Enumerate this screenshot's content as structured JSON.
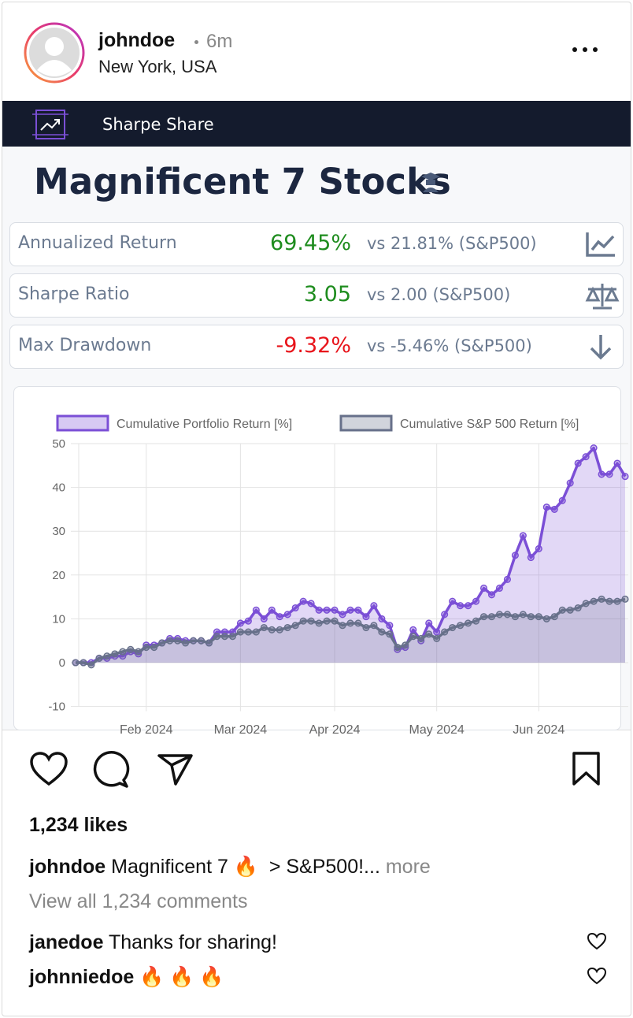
{
  "post": {
    "username": "johndoe",
    "time": "6m",
    "location": "New York, USA"
  },
  "app": {
    "name": "Sharpe Share",
    "title": "Magnificent 7 Stocks"
  },
  "metrics": [
    {
      "label": "Annualized Return",
      "value": "69.45%",
      "benchmark": "vs 21.81% (S&P500)",
      "color": "#1e8c1e"
    },
    {
      "label": "Sharpe Ratio",
      "value": "3.05",
      "benchmark": "vs 2.00 (S&P500)",
      "color": "#1e8c1e"
    },
    {
      "label": "Max Drawdown",
      "value": "-9.32%",
      "benchmark": "vs -5.46% (S&P500)",
      "color": "#e8141b"
    }
  ],
  "chart_data": {
    "type": "line",
    "categories": [
      null,
      null,
      null,
      null,
      null,
      null,
      null,
      null,
      null,
      "Feb 2024",
      null,
      null,
      null,
      null,
      null,
      null,
      null,
      null,
      null,
      null,
      null,
      "Mar 2024",
      null,
      null,
      null,
      null,
      null,
      null,
      null,
      null,
      null,
      null,
      null,
      "Apr 2024",
      null,
      null,
      null,
      null,
      null,
      null,
      null,
      null,
      null,
      null,
      null,
      null,
      "May 2024",
      null,
      null,
      null,
      null,
      null,
      null,
      null,
      null,
      null,
      null,
      null,
      null,
      "Jun 2024",
      null,
      null,
      null,
      null,
      null,
      null,
      null,
      null,
      null,
      null,
      null
    ],
    "series": [
      {
        "name": "Cumulative Portfolio Return [%]",
        "color": "#7b4fd6",
        "values": [
          0,
          0,
          0,
          1,
          1,
          1.5,
          1.5,
          2.5,
          2,
          4,
          4,
          4.5,
          5.5,
          5.5,
          5,
          5,
          5,
          4.5,
          7,
          7,
          7,
          9,
          9.5,
          12,
          10,
          12,
          10.5,
          11,
          12.5,
          14,
          13.5,
          12,
          12,
          12,
          11,
          12,
          12,
          10.5,
          13,
          10,
          8.5,
          3,
          3.5,
          7.5,
          5,
          9,
          7,
          11,
          14,
          13,
          13,
          14,
          17,
          15.5,
          17,
          19,
          24.5,
          29,
          24,
          26,
          35.5,
          35,
          37,
          41,
          45.5,
          47,
          49,
          43,
          43,
          45.5,
          42.5
        ]
      },
      {
        "name": "Cumulative S&P 500 Return [%]",
        "color": "#67708a",
        "values": [
          0,
          0,
          -0.5,
          1,
          1.5,
          2,
          2.5,
          3,
          2.5,
          3.5,
          3.5,
          4.5,
          5,
          5,
          4.5,
          5,
          5,
          4.5,
          6,
          6,
          6,
          7,
          7,
          7,
          8,
          7.5,
          7.5,
          8,
          8.5,
          9.5,
          9.5,
          9,
          9.5,
          9.5,
          8.5,
          9,
          9,
          8,
          8.5,
          7,
          6.5,
          3.5,
          4,
          6,
          5.5,
          6.5,
          5.5,
          7,
          8,
          8.5,
          9,
          9.5,
          10.5,
          10.5,
          11,
          11,
          10.5,
          11,
          10.5,
          10.5,
          10,
          10.5,
          12,
          12,
          12.5,
          13.5,
          14,
          14.5,
          14,
          14,
          14.5
        ]
      }
    ],
    "ylim": [
      -10,
      50
    ],
    "yticks": [
      -10,
      0,
      10,
      20,
      30,
      40,
      50
    ],
    "grid": true,
    "legend": "top"
  },
  "engagement": {
    "likes": "1,234 likes",
    "caption_user": "johndoe",
    "caption": "Magnificent 7 🔥  > S&P500!...",
    "more": "more",
    "view_comments": "View all 1,234 comments"
  },
  "comments": [
    {
      "user": "janedoe",
      "text": "Thanks for sharing!"
    },
    {
      "user": "johnniedoe",
      "text": "🔥 🔥 🔥"
    }
  ]
}
